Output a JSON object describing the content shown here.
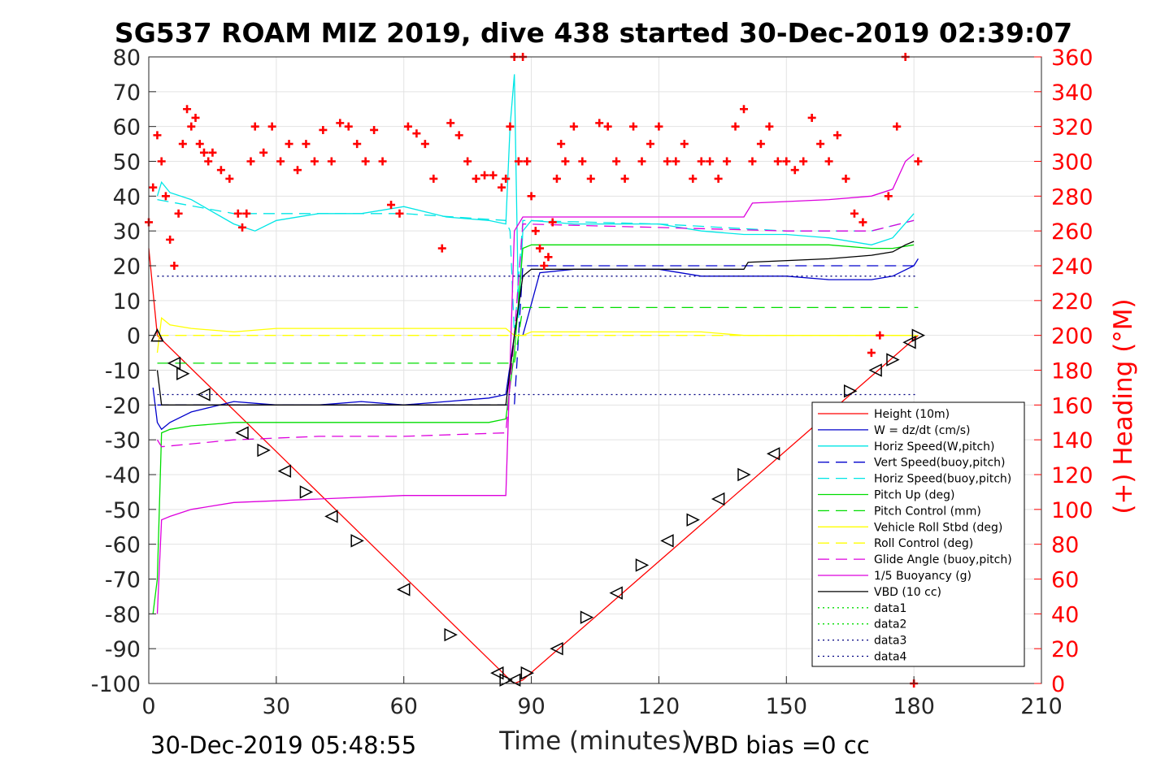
{
  "chart_data": {
    "type": "line",
    "title": "SG537 ROAM MIZ 2019, dive 438 started 30-Dec-2019 02:39:07",
    "xlabel": "Time (minutes)",
    "ylabel_right": "(+) Heading (°M)",
    "xlim": [
      0,
      210
    ],
    "ylim_left": [
      -100,
      80
    ],
    "ylim_right": [
      0,
      360
    ],
    "x_ticks": [
      0,
      30,
      60,
      90,
      120,
      150,
      180,
      210
    ],
    "y_ticks_left": [
      80,
      70,
      60,
      50,
      40,
      30,
      20,
      10,
      0,
      -10,
      -20,
      -30,
      -40,
      -50,
      -60,
      -70,
      -80,
      -90,
      -100
    ],
    "y_ticks_right": [
      360,
      340,
      320,
      300,
      280,
      260,
      240,
      220,
      200,
      180,
      160,
      140,
      120,
      100,
      80,
      60,
      40,
      20,
      0
    ],
    "grid": true,
    "legend_position": "bottom-right",
    "footer_left": "30-Dec-2019 05:48:55",
    "footer_right": "VBD bias =0 cc",
    "series": [
      {
        "name": "Height (10m)",
        "color": "#ff0000",
        "dash": "solid",
        "x": [
          0,
          2,
          85,
          86,
          88,
          181
        ],
        "y": [
          25,
          0,
          -99,
          -100,
          -99,
          0
        ]
      },
      {
        "name": "W = dz/dt (cm/s)",
        "color": "#0000cc",
        "dash": "solid",
        "x": [
          1,
          2,
          3,
          5,
          10,
          20,
          30,
          40,
          50,
          60,
          70,
          80,
          84,
          86,
          88,
          92,
          100,
          110,
          120,
          130,
          140,
          150,
          160,
          170,
          175,
          180,
          181
        ],
        "y": [
          -15,
          -25,
          -27,
          -25,
          -22,
          -19,
          -20,
          -20,
          -19,
          -20,
          -19,
          -18,
          -17,
          0,
          0,
          18,
          19,
          19,
          19,
          17,
          17,
          17,
          16,
          16,
          17,
          20,
          22
        ]
      },
      {
        "name": "Horiz Speed(W,pitch)",
        "color": "#00e6e6",
        "dash": "solid",
        "x": [
          2,
          3,
          5,
          10,
          20,
          25,
          30,
          40,
          50,
          60,
          70,
          80,
          84,
          85,
          86,
          87,
          88,
          90,
          100,
          110,
          120,
          130,
          140,
          150,
          160,
          170,
          175,
          180
        ],
        "y": [
          40,
          44,
          41,
          39,
          32,
          30,
          33,
          35,
          35,
          37,
          34,
          33,
          32,
          60,
          75,
          5,
          30,
          33,
          32,
          32,
          32,
          30,
          29,
          29,
          28,
          26,
          28,
          35
        ]
      },
      {
        "name": "Vert Speed(buoy,pitch)",
        "color": "#0000cc",
        "dash": "long",
        "x": [
          2,
          86,
          88,
          181
        ],
        "y": [
          -20,
          -20,
          20,
          20
        ]
      },
      {
        "name": "Horiz Speed(buoy,pitch)",
        "color": "#00e6e6",
        "dash": "long",
        "x": [
          2,
          20,
          40,
          60,
          84,
          85,
          86,
          88,
          120,
          150,
          170,
          180
        ],
        "y": [
          39,
          35,
          35,
          35,
          33,
          30,
          0,
          33,
          32,
          30,
          30,
          33
        ]
      },
      {
        "name": "Pitch Up (deg)",
        "color": "#00dd00",
        "dash": "solid",
        "x": [
          1,
          2,
          3,
          5,
          10,
          20,
          30,
          40,
          50,
          60,
          70,
          80,
          84,
          86,
          88,
          90,
          100,
          110,
          120,
          130,
          140,
          150,
          160,
          170,
          175,
          180
        ],
        "y": [
          -80,
          -70,
          -28,
          -27,
          -26,
          -25,
          -25,
          -25,
          -25,
          -25,
          -25,
          -25,
          -24,
          -5,
          25,
          26,
          26,
          26,
          26,
          26,
          26,
          26,
          26,
          25,
          25,
          26
        ]
      },
      {
        "name": "Pitch Control (mm)",
        "color": "#00dd00",
        "dash": "long",
        "x": [
          2,
          86,
          88,
          181
        ],
        "y": [
          -8,
          -8,
          8,
          8
        ]
      },
      {
        "name": "Vehicle Roll Stbd (deg)",
        "color": "#ffff00",
        "dash": "solid",
        "x": [
          2,
          3,
          5,
          10,
          20,
          30,
          40,
          50,
          60,
          70,
          80,
          84,
          86,
          88,
          90,
          100,
          110,
          120,
          130,
          140,
          150,
          160,
          170,
          180
        ],
        "y": [
          -5,
          5,
          3,
          2,
          1,
          2,
          2,
          2,
          2,
          2,
          2,
          2,
          0,
          0,
          1,
          1,
          1,
          1,
          1,
          0,
          0,
          0,
          0,
          0
        ]
      },
      {
        "name": "Roll Control (deg)",
        "color": "#ffff00",
        "dash": "long",
        "x": [
          2,
          181
        ],
        "y": [
          0,
          0
        ]
      },
      {
        "name": "Glide Angle (buoy,pitch)",
        "color": "#dd00dd",
        "dash": "long",
        "x": [
          2,
          3,
          20,
          40,
          60,
          84,
          86,
          88,
          120,
          150,
          170,
          180
        ],
        "y": [
          -30,
          -32,
          -30,
          -29,
          -29,
          -28,
          0,
          32,
          31,
          30,
          30,
          33
        ]
      },
      {
        "name": "1/5 Buoyancy (g)",
        "color": "#dd00dd",
        "dash": "solid",
        "x": [
          2,
          3,
          5,
          10,
          20,
          40,
          60,
          84,
          86,
          88,
          90,
          100,
          120,
          140,
          142,
          160,
          170,
          175,
          178,
          180
        ],
        "y": [
          -80,
          -53,
          -52,
          -50,
          -48,
          -47,
          -46,
          -46,
          30,
          34,
          34,
          34,
          34,
          34,
          38,
          39,
          40,
          42,
          50,
          52
        ]
      },
      {
        "name": "VBD (10 cc)",
        "color": "#000000",
        "dash": "solid",
        "x": [
          2,
          3,
          84,
          86,
          88,
          90,
          140,
          141,
          160,
          170,
          175,
          178,
          180
        ],
        "y": [
          -10,
          -20,
          -20,
          0,
          17,
          19,
          19,
          21,
          22,
          23,
          24,
          26,
          27
        ]
      },
      {
        "name": "data1",
        "color": "#00dd00",
        "dash": "dotted",
        "x": [],
        "y": []
      },
      {
        "name": "data2",
        "color": "#00dd00",
        "dash": "dotted",
        "x": [],
        "y": []
      },
      {
        "name": "data3",
        "color": "#000080",
        "dash": "dotted",
        "x": [
          2,
          181
        ],
        "y": [
          17,
          17
        ]
      },
      {
        "name": "data4",
        "color": "#000080",
        "dash": "dotted",
        "x": [
          2,
          181
        ],
        "y": [
          -17,
          -17
        ]
      }
    ],
    "heading_series": {
      "axis": "right",
      "color": "#ff0000",
      "marker": "+",
      "x": [
        0,
        1,
        2,
        3,
        4,
        5,
        6,
        7,
        8,
        9,
        10,
        11,
        12,
        13,
        14,
        15,
        17,
        19,
        21,
        22,
        23,
        24,
        25,
        27,
        29,
        31,
        33,
        35,
        37,
        39,
        41,
        43,
        45,
        47,
        49,
        51,
        53,
        55,
        57,
        59,
        61,
        63,
        65,
        67,
        69,
        71,
        73,
        75,
        77,
        79,
        81,
        83,
        84,
        85,
        86,
        87,
        88,
        89,
        90,
        91,
        92,
        93,
        94,
        95,
        96,
        97,
        98,
        100,
        102,
        104,
        106,
        108,
        110,
        112,
        114,
        116,
        118,
        120,
        122,
        124,
        126,
        128,
        130,
        132,
        134,
        136,
        138,
        140,
        142,
        144,
        146,
        148,
        150,
        152,
        154,
        156,
        158,
        160,
        162,
        164,
        166,
        168,
        170,
        172,
        174,
        176,
        178,
        180,
        181
      ],
      "y": [
        265,
        285,
        315,
        300,
        280,
        255,
        240,
        270,
        310,
        330,
        320,
        325,
        310,
        305,
        300,
        305,
        295,
        290,
        270,
        262,
        270,
        300,
        320,
        305,
        320,
        300,
        310,
        295,
        310,
        300,
        318,
        300,
        322,
        320,
        310,
        300,
        318,
        300,
        275,
        270,
        320,
        316,
        310,
        290,
        250,
        322,
        315,
        300,
        290,
        292,
        292,
        285,
        290,
        320,
        360,
        300,
        360,
        300,
        280,
        260,
        250,
        240,
        245,
        265,
        290,
        310,
        300,
        320,
        300,
        290,
        322,
        320,
        300,
        290,
        320,
        300,
        310,
        320,
        300,
        300,
        310,
        290,
        300,
        300,
        290,
        300,
        320,
        330,
        300,
        310,
        320,
        300,
        300,
        295,
        300,
        325,
        310,
        300,
        315,
        290,
        270,
        265,
        190,
        200,
        280,
        320,
        360,
        0,
        300
      ]
    },
    "depth_markers": [
      {
        "x": 2,
        "y": 0,
        "shape": "up"
      },
      {
        "x": 6,
        "y": -8,
        "shape": "left"
      },
      {
        "x": 8,
        "y": -11,
        "shape": "right"
      },
      {
        "x": 13,
        "y": -17,
        "shape": "left"
      },
      {
        "x": 22,
        "y": -28,
        "shape": "left"
      },
      {
        "x": 27,
        "y": -33,
        "shape": "right"
      },
      {
        "x": 32,
        "y": -39,
        "shape": "left"
      },
      {
        "x": 37,
        "y": -45,
        "shape": "right"
      },
      {
        "x": 43,
        "y": -52,
        "shape": "left"
      },
      {
        "x": 49,
        "y": -59,
        "shape": "right"
      },
      {
        "x": 60,
        "y": -73,
        "shape": "left"
      },
      {
        "x": 71,
        "y": -86,
        "shape": "right"
      },
      {
        "x": 82,
        "y": -97,
        "shape": "left"
      },
      {
        "x": 84,
        "y": -99,
        "shape": "right"
      },
      {
        "x": 86,
        "y": -99,
        "shape": "left"
      },
      {
        "x": 89,
        "y": -97,
        "shape": "right"
      },
      {
        "x": 96,
        "y": -90,
        "shape": "left"
      },
      {
        "x": 103,
        "y": -81,
        "shape": "right"
      },
      {
        "x": 110,
        "y": -74,
        "shape": "left"
      },
      {
        "x": 116,
        "y": -66,
        "shape": "right"
      },
      {
        "x": 122,
        "y": -59,
        "shape": "left"
      },
      {
        "x": 128,
        "y": -53,
        "shape": "right"
      },
      {
        "x": 134,
        "y": -47,
        "shape": "left"
      },
      {
        "x": 140,
        "y": -40,
        "shape": "right"
      },
      {
        "x": 147,
        "y": -34,
        "shape": "left"
      },
      {
        "x": 165,
        "y": -16,
        "shape": "right"
      },
      {
        "x": 171,
        "y": -10,
        "shape": "left"
      },
      {
        "x": 175,
        "y": -7,
        "shape": "right"
      },
      {
        "x": 179,
        "y": -2,
        "shape": "left"
      },
      {
        "x": 181,
        "y": 0,
        "shape": "right"
      }
    ]
  }
}
